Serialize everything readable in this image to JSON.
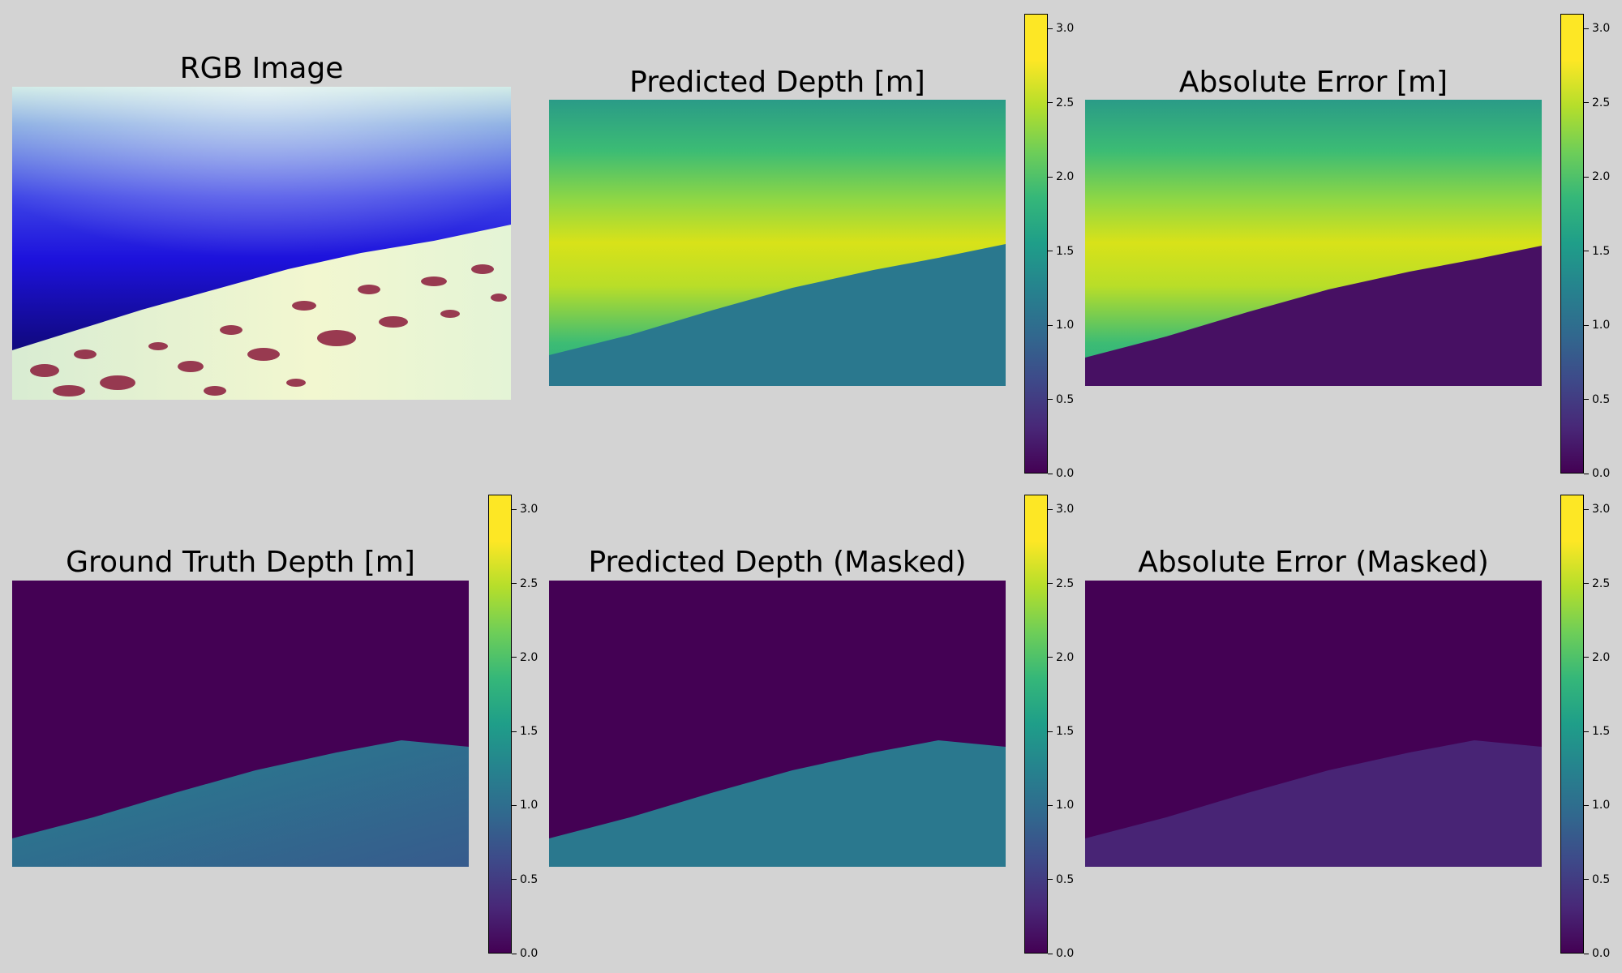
{
  "figure": {
    "background": "#d3d3d3",
    "colormap": "viridis",
    "panels": [
      {
        "id": "rgb",
        "title": "RGB Image",
        "colorbar": false
      },
      {
        "id": "pred",
        "title": "Predicted Depth [m]",
        "colorbar": true
      },
      {
        "id": "err",
        "title": "Absolute Error [m]",
        "colorbar": true
      },
      {
        "id": "gt",
        "title": "Ground Truth Depth [m]",
        "colorbar": true
      },
      {
        "id": "pred_masked",
        "title": "Predicted Depth (Masked)",
        "colorbar": true
      },
      {
        "id": "err_masked",
        "title": "Absolute Error (Masked)",
        "colorbar": true
      }
    ],
    "colorbar_ticks": [
      "0.0",
      "0.5",
      "1.0",
      "1.5",
      "2.0",
      "2.5",
      "3.0"
    ],
    "colorbar_range": [
      0,
      3.1
    ]
  }
}
